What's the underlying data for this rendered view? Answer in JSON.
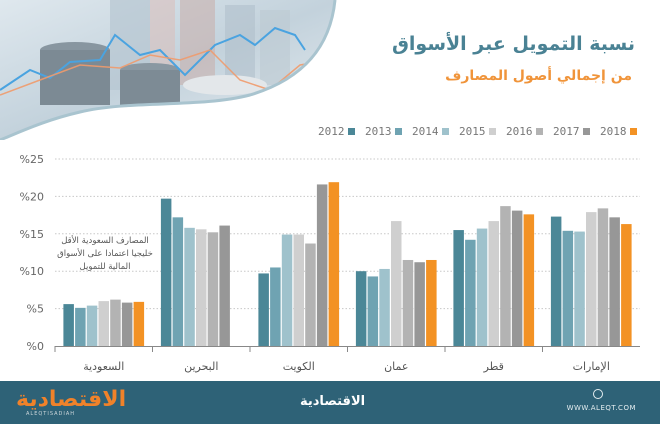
{
  "header": {
    "title": "نسبة التمويل عبر الأسواق",
    "subtitle": "من إجمالي أصول المصارف"
  },
  "colors": {
    "2012": "#4b8797",
    "2013": "#6fa3b2",
    "2014": "#9fc2cc",
    "2015": "#cfcfcf",
    "2016": "#b3b3b3",
    "2017": "#979797",
    "2018": "#f39224",
    "title": "#4a8294",
    "subtitle": "#f0943a",
    "footer": "#2e6277"
  },
  "legend": [
    "2012",
    "2013",
    "2014",
    "2015",
    "2016",
    "2017",
    "2018"
  ],
  "annotation": {
    "lines": [
      "المصارف السعودية الأقل",
      "خليجيا اعتمادا على الأسواق",
      "المالية للتمويل"
    ]
  },
  "footer": {
    "logo_text": "الاقتصادية",
    "logo_sub": "ALEQTISADIAH",
    "center_text": "الاقتصادية",
    "url": "WWW.ALEQT.COM"
  },
  "chart_data": {
    "type": "bar",
    "title": "نسبة التمويل عبر الأسواق",
    "subtitle": "من إجمالي أصول المصارف",
    "xlabel": "",
    "ylabel": "",
    "ylim": [
      0,
      25
    ],
    "yticks": [
      0,
      5,
      10,
      15,
      20,
      25
    ],
    "ytick_labels": [
      "%0",
      "%5",
      "%10",
      "%15",
      "%20",
      "%25"
    ],
    "grid": true,
    "legend_position": "top-right",
    "categories": [
      "السعودية",
      "البحرين",
      "الكويت",
      "عمان",
      "قطر",
      "الإمارات"
    ],
    "series": [
      {
        "name": "2012",
        "values": [
          5.6,
          19.7,
          9.7,
          10.0,
          15.5,
          17.3
        ]
      },
      {
        "name": "2013",
        "values": [
          5.1,
          17.2,
          10.5,
          9.3,
          14.2,
          15.4
        ]
      },
      {
        "name": "2014",
        "values": [
          5.4,
          15.8,
          14.9,
          10.3,
          15.7,
          15.3
        ]
      },
      {
        "name": "2015",
        "values": [
          6.0,
          15.6,
          14.9,
          16.7,
          16.7,
          17.9
        ]
      },
      {
        "name": "2016",
        "values": [
          6.2,
          15.2,
          13.7,
          11.5,
          18.7,
          18.4
        ]
      },
      {
        "name": "2017",
        "values": [
          5.8,
          16.1,
          21.6,
          11.2,
          18.1,
          17.2
        ]
      },
      {
        "name": "2018",
        "values": [
          5.9,
          null,
          21.9,
          11.5,
          17.6,
          16.3
        ]
      }
    ]
  }
}
